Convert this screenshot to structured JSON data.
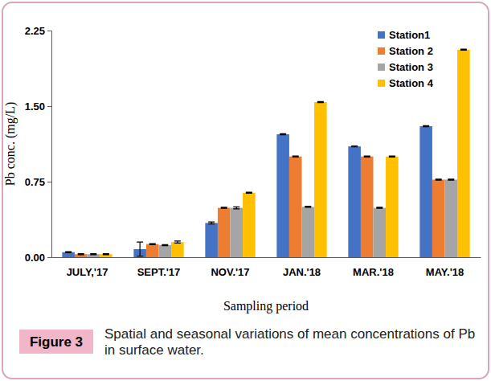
{
  "chart_data": {
    "type": "bar",
    "title": "Figure 3",
    "subtitle": "Spatial and seasonal variations of mean concentrations of Pb in surface water.",
    "x_label": "Sampling period",
    "y_label": "Pb conc. (mg/L)",
    "categories": [
      "JULY,'17",
      "SEPT.'17",
      "NOV.'17",
      "JAN.'18",
      "MAR.'18",
      "MAY.'18"
    ],
    "series": [
      {
        "name": "Station1",
        "color": "#4472c4",
        "values": [
          0.05,
          0.08,
          0.34,
          1.22,
          1.1,
          1.3
        ],
        "errors": [
          0.005,
          0.07,
          0.01,
          0.005,
          0.005,
          0.005
        ]
      },
      {
        "name": "Station 2",
        "color": "#ed7d31",
        "values": [
          0.03,
          0.13,
          0.49,
          1.0,
          1.0,
          0.77
        ],
        "errors": [
          0.005,
          0.005,
          0.005,
          0.005,
          0.005,
          0.005
        ]
      },
      {
        "name": "Station 3",
        "color": "#a5a5a5",
        "values": [
          0.03,
          0.12,
          0.49,
          0.5,
          0.49,
          0.77
        ],
        "errors": [
          0.005,
          0.005,
          0.01,
          0.005,
          0.005,
          0.005
        ]
      },
      {
        "name": "Station 4",
        "color": "#ffc000",
        "values": [
          0.03,
          0.15,
          0.64,
          1.54,
          1.0,
          2.06
        ],
        "errors": [
          0.005,
          0.01,
          0.005,
          0.005,
          0.005,
          0.005
        ]
      }
    ],
    "ylim": [
      0,
      2.25
    ],
    "yticks": [
      {
        "value": 0,
        "label": "0.00"
      },
      0.75,
      {
        "value": 1.5,
        "label": "1.50"
      },
      2.25
    ],
    "legend": "upper right",
    "grid": false
  }
}
